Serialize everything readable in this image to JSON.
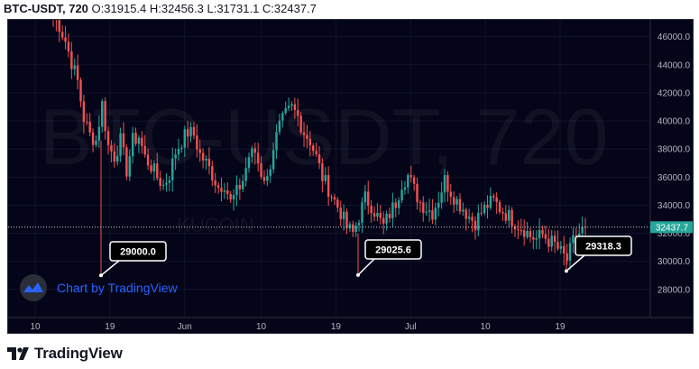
{
  "header": {
    "symbol": "BTC-USDT, 720",
    "ohlc": "O:31915.4 H:32456.3 L:31731.1 C:32437.7"
  },
  "watermark": {
    "title": "BTC-USDT, 720",
    "subtitle": "KUCOIN"
  },
  "attribution": {
    "text": "Chart by TradingView"
  },
  "footer": {
    "brand": "TradingView"
  },
  "colors": {
    "background": "#050519",
    "up": "#26a69a",
    "down": "#ef5350",
    "last_price_tag": "#26a69a"
  },
  "chart_data": {
    "type": "candlestick",
    "interval": "720",
    "ylim": [
      26000,
      47200
    ],
    "y_ticks": [
      28000,
      30000,
      32000,
      34000,
      36000,
      38000,
      40000,
      42000,
      44000,
      46000
    ],
    "y_tick_labels": [
      "28000.0",
      "30000.0",
      "32000.0",
      "34000.0",
      "36000.0",
      "38000.0",
      "40000.0",
      "42000.0",
      "44000.0",
      "46000.0"
    ],
    "x_tick_labels": [
      "10",
      "19",
      "Jun",
      "10",
      "19",
      "Jul",
      "10",
      "19"
    ],
    "last_price": 32437.7,
    "last_price_label": "32437.7",
    "annotations": [
      {
        "label": "29000.0",
        "price": 29000.0
      },
      {
        "label": "29025.6",
        "price": 29025.6
      },
      {
        "label": "29318.3",
        "price": 29318.3
      }
    ],
    "close_path": [
      47500,
      46800,
      45700,
      44200,
      42800,
      40200,
      39000,
      38600,
      41200,
      38200,
      37500,
      38600,
      36500,
      38600,
      38900,
      37400,
      36800,
      36000,
      35400,
      36200,
      37800,
      38600,
      39200,
      39000,
      37600,
      37000,
      36200,
      35300,
      35600,
      34200,
      34900,
      35800,
      37500,
      37800,
      36300,
      35800,
      38200,
      39600,
      40400,
      40900,
      40300,
      39200,
      38600,
      37400,
      36000,
      35200,
      34300,
      33500,
      32400,
      32000,
      33200,
      34500,
      34000,
      33200,
      32500,
      33400,
      34200,
      35600,
      36100,
      35100,
      34200,
      33800,
      33500,
      34500,
      35800,
      35000,
      34300,
      33800,
      33200,
      32800,
      33500,
      34000,
      34300,
      33800,
      33400,
      33000,
      32600,
      32300,
      31800,
      31600,
      31900,
      31500,
      31200,
      30600,
      30100,
      31400,
      32000,
      32437.7
    ]
  }
}
